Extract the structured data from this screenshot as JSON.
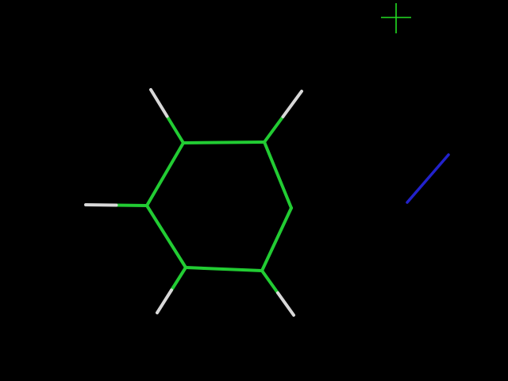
{
  "viewer": {
    "background": "#000000",
    "cursor_icon": "crosshair-cursor-icon",
    "cursor_color": "#22dd22"
  },
  "molecule": {
    "atoms": [
      {
        "id": "C1",
        "element": "C"
      },
      {
        "id": "C2",
        "element": "C"
      },
      {
        "id": "C3",
        "element": "C"
      },
      {
        "id": "C4",
        "element": "C"
      },
      {
        "id": "C5",
        "element": "C"
      },
      {
        "id": "C6",
        "element": "C"
      },
      {
        "id": "H1",
        "element": "H"
      },
      {
        "id": "H2",
        "element": "H"
      },
      {
        "id": "H4",
        "element": "H"
      },
      {
        "id": "H5",
        "element": "H"
      },
      {
        "id": "H6",
        "element": "H"
      }
    ],
    "bonds": [
      {
        "a": "C1",
        "b": "C2"
      },
      {
        "a": "C2",
        "b": "C3"
      },
      {
        "a": "C3",
        "b": "C4"
      },
      {
        "a": "C4",
        "b": "C5"
      },
      {
        "a": "C5",
        "b": "C6"
      },
      {
        "a": "C6",
        "b": "C1"
      },
      {
        "a": "C1",
        "b": "H1"
      },
      {
        "a": "C2",
        "b": "H2"
      },
      {
        "a": "C4",
        "b": "H4"
      },
      {
        "a": "C5",
        "b": "H5"
      },
      {
        "a": "C6",
        "b": "H6"
      }
    ],
    "element_colors": {
      "C": "#22cc33",
      "H": "#d8d8d8"
    }
  },
  "axis_indicator": {
    "color": "#2222cc"
  }
}
